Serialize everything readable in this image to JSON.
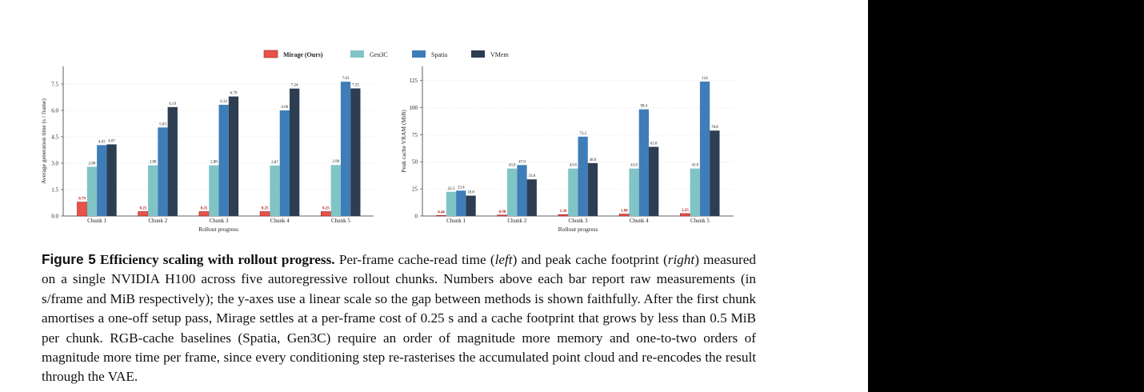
{
  "chart_data": [
    {
      "type": "bar",
      "y_label": "Average generation time (s / frame)",
      "x_label": "Rollout progress",
      "categories": [
        "Chunk 1",
        "Chunk 2",
        "Chunk 3",
        "Chunk 4",
        "Chunk 5"
      ],
      "ylim": [
        0,
        8.5
      ],
      "yticks": [
        {
          "value": 0,
          "label": "0.0"
        },
        1.5,
        {
          "value": 3,
          "label": "3.0"
        },
        4.5,
        {
          "value": 6,
          "label": "6.0"
        },
        7.5
      ],
      "grid": true,
      "legend": "top",
      "series": [
        {
          "name": "Mirage (Ours)",
          "color": "#e8524a",
          "values": [
            0.79,
            0.25,
            0.25,
            0.25,
            0.25
          ]
        },
        {
          "name": "Gen3C",
          "color": "#80c4c6",
          "values": [
            2.8,
            2.88,
            2.88,
            2.87,
            2.9
          ],
          "value_labels": [
            "2.80",
            "2.88",
            "2.88",
            "2.87",
            "2.90"
          ]
        },
        {
          "name": "Spatia",
          "color": "#3f7db8",
          "values": [
            4.03,
            5.03,
            6.32,
            6,
            7.63
          ],
          "value_labels": [
            "4.03",
            "5.03",
            "6.32",
            "6.00",
            "7.63"
          ]
        },
        {
          "name": "VMem",
          "color": "#2d3d52",
          "values": [
            4.07,
            6.19,
            6.79,
            7.24,
            7.25
          ]
        }
      ]
    },
    {
      "type": "bar",
      "y_label": "Peak cache VRAM (MiB)",
      "x_label": "Rollout progress",
      "categories": [
        "Chunk 1",
        "Chunk 2",
        "Chunk 3",
        "Chunk 4",
        "Chunk 5"
      ],
      "ylim": [
        0,
        138
      ],
      "yticks": [
        0,
        25,
        50,
        75,
        100,
        125
      ],
      "grid": true,
      "series": [
        {
          "name": "Mirage (Ours)",
          "color": "#e8524a",
          "values": [
            0.46,
            0.9,
            1.36,
            1.8,
            2.25
          ],
          "value_labels": [
            "0.46",
            "0.90",
            "1.36",
            "1.80",
            "2.25"
          ]
        },
        {
          "name": "Gen3C",
          "color": "#80c4c6",
          "values": [
            22.3,
            43.8,
            43.8,
            43.8,
            43.8
          ]
        },
        {
          "name": "Spatia",
          "color": "#3f7db8",
          "values": [
            23.4,
            47,
            73.2,
            98.4,
            124
          ],
          "value_labels": [
            "23.4",
            "47.0",
            "73.2",
            "98.4",
            "124"
          ]
        },
        {
          "name": "VMem",
          "color": "#2d3d52",
          "values": [
            18.8,
            33.8,
            48.8,
            63.8,
            78.8
          ]
        }
      ]
    }
  ],
  "caption": {
    "label": "Figure 5",
    "title": "Efficiency scaling with rollout progress.",
    "body": [
      "Per-frame cache-read time (",
      "left",
      ") and peak cache footprint (",
      "right",
      ") measured on a single NVIDIA H100 across five autoregressive rollout chunks. Numbers above each bar report raw measurements (in s/frame and MiB respectively); the y-axes use a linear scale so the gap between methods is shown faithfully. After the first chunk amortises a one-off setup pass, Mirage settles at a per-frame cost of 0.25 s and a cache footprint that grows by less than 0.5 MiB per chunk. RGB-cache baselines (Spatia, Gen3C) require an order of magnitude more memory and one-to-two orders of magnitude more time per frame, since every conditioning step re-rasterises the accumulated point cloud and re-encodes the result through the VAE."
    ]
  }
}
